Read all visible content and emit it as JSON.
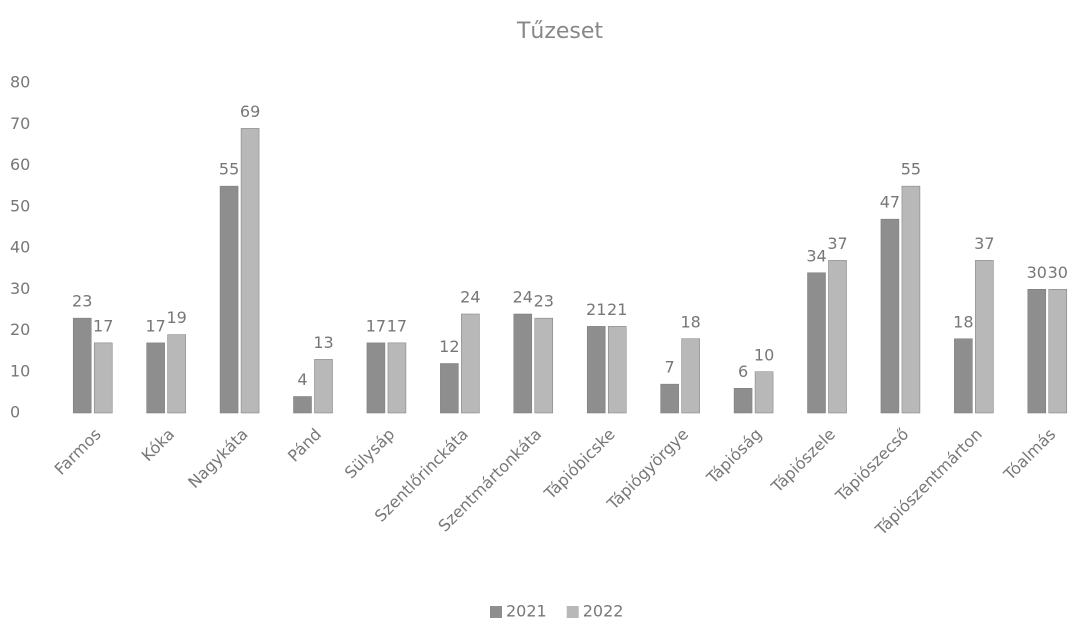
{
  "chart_data": {
    "type": "bar",
    "title": "Tűzeset",
    "categories": [
      "Farmos",
      "Kóka",
      "Nagykáta",
      "Pánd",
      "Sülysáp",
      "Szentlőrinckáta",
      "Szentmártonkáta",
      "Tápióbicske",
      "Tápiógyörgye",
      "Tápióság",
      "Tápiószele",
      "Tápiószecső",
      "Tápiószentmárton",
      "Tóalmás"
    ],
    "series": [
      {
        "name": "2021",
        "color": "#8e8e8e",
        "values": [
          23,
          17,
          55,
          4,
          17,
          12,
          24,
          21,
          7,
          6,
          34,
          47,
          18,
          30
        ]
      },
      {
        "name": "2022",
        "color": "#b8b8b8",
        "values": [
          17,
          19,
          69,
          13,
          17,
          24,
          23,
          21,
          18,
          10,
          37,
          55,
          37,
          30
        ]
      }
    ],
    "ylim": [
      0,
      80
    ],
    "yticks": [
      0,
      10,
      20,
      30,
      40,
      50,
      60,
      70,
      80
    ],
    "grid": false,
    "legend": "bottom"
  }
}
